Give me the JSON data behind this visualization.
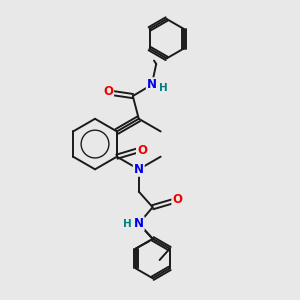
{
  "background_color": "#e8e8e8",
  "bond_color": "#1a1a1a",
  "atom_colors": {
    "N": "#0000ee",
    "O": "#ee0000",
    "H": "#008080",
    "C": "#1a1a1a"
  },
  "bond_width": 1.4,
  "font_size_atom": 8.5,
  "font_size_H": 7.5
}
